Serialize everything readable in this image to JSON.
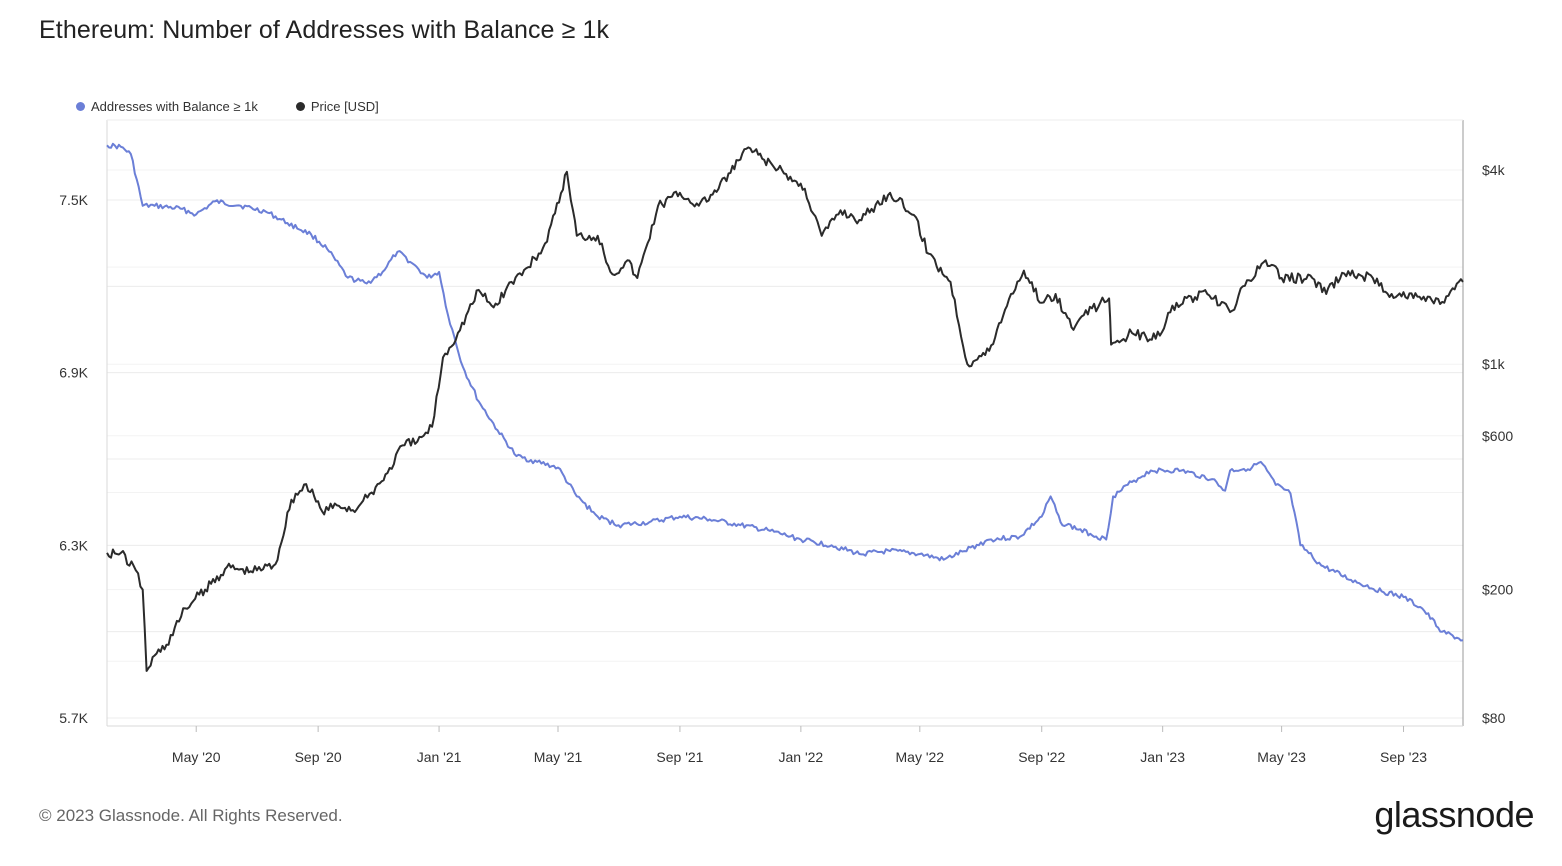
{
  "header": {
    "title": "Ethereum: Number of Addresses with Balance ≥ 1k"
  },
  "legend": [
    {
      "label": "Addresses with Balance ≥ 1k",
      "color": "#6b7fd7"
    },
    {
      "label": "Price [USD]",
      "color": "#2b2b2b"
    }
  ],
  "footer": {
    "copyright": "© 2023 Glassnode. All Rights Reserved.",
    "brand": "glassnode"
  },
  "chart_data": {
    "type": "line",
    "title": "Ethereum: Number of Addresses with Balance ≥ 1k",
    "x_ticks": [
      "May '20",
      "Sep '20",
      "Jan '21",
      "May '21",
      "Sep '21",
      "Jan '22",
      "May '22",
      "Sep '22",
      "Jan '23",
      "May '23",
      "Sep '23"
    ],
    "y_left_ticks": [
      "7.5K",
      "6.9K",
      "6.3K",
      "5.7K"
    ],
    "y_right_ticks": [
      "$4k",
      "$1k",
      "$600",
      "$200",
      "$80"
    ],
    "y_left_range": [
      5700,
      7800
    ],
    "y_right_scale": "log",
    "y_right_range": [
      80,
      5000
    ],
    "x_range": [
      "2020-02-01",
      "2023-10-31"
    ],
    "grid": true,
    "legend_position": "top-left",
    "series": [
      {
        "name": "Addresses with Balance ≥ 1k",
        "axis": "left",
        "color": "#6b7fd7",
        "points": [
          [
            "2020-02-01",
            7690
          ],
          [
            "2020-02-15",
            7685
          ],
          [
            "2020-02-25",
            7660
          ],
          [
            "2020-03-08",
            7480
          ],
          [
            "2020-03-20",
            7480
          ],
          [
            "2020-04-15",
            7470
          ],
          [
            "2020-05-01",
            7450
          ],
          [
            "2020-05-20",
            7495
          ],
          [
            "2020-06-15",
            7480
          ],
          [
            "2020-07-10",
            7460
          ],
          [
            "2020-08-01",
            7420
          ],
          [
            "2020-08-25",
            7380
          ],
          [
            "2020-09-10",
            7330
          ],
          [
            "2020-10-01",
            7230
          ],
          [
            "2020-10-20",
            7210
          ],
          [
            "2020-11-05",
            7250
          ],
          [
            "2020-11-20",
            7320
          ],
          [
            "2020-12-05",
            7280
          ],
          [
            "2020-12-20",
            7230
          ],
          [
            "2021-01-01",
            7250
          ],
          [
            "2021-01-10",
            7100
          ],
          [
            "2021-01-25",
            6920
          ],
          [
            "2021-02-10",
            6800
          ],
          [
            "2021-03-01",
            6700
          ],
          [
            "2021-03-20",
            6610
          ],
          [
            "2021-04-10",
            6590
          ],
          [
            "2021-05-01",
            6570
          ],
          [
            "2021-05-20",
            6470
          ],
          [
            "2021-06-10",
            6400
          ],
          [
            "2021-07-01",
            6370
          ],
          [
            "2021-08-01",
            6380
          ],
          [
            "2021-09-01",
            6400
          ],
          [
            "2021-10-01",
            6390
          ],
          [
            "2021-11-01",
            6370
          ],
          [
            "2021-12-01",
            6350
          ],
          [
            "2022-01-01",
            6320
          ],
          [
            "2022-02-01",
            6300
          ],
          [
            "2022-03-01",
            6270
          ],
          [
            "2022-04-01",
            6280
          ],
          [
            "2022-05-01",
            6270
          ],
          [
            "2022-05-25",
            6250
          ],
          [
            "2022-06-15",
            6280
          ],
          [
            "2022-07-10",
            6320
          ],
          [
            "2022-08-10",
            6330
          ],
          [
            "2022-09-01",
            6400
          ],
          [
            "2022-09-10",
            6470
          ],
          [
            "2022-09-20",
            6380
          ],
          [
            "2022-10-20",
            6340
          ],
          [
            "2022-11-05",
            6320
          ],
          [
            "2022-11-12",
            6470
          ],
          [
            "2022-12-01",
            6520
          ],
          [
            "2022-12-20",
            6560
          ],
          [
            "2023-01-20",
            6560
          ],
          [
            "2023-02-20",
            6530
          ],
          [
            "2023-03-05",
            6490
          ],
          [
            "2023-03-10",
            6560
          ],
          [
            "2023-04-01",
            6570
          ],
          [
            "2023-04-10",
            6590
          ],
          [
            "2023-04-25",
            6510
          ],
          [
            "2023-05-10",
            6480
          ],
          [
            "2023-05-20",
            6300
          ],
          [
            "2023-06-10",
            6230
          ],
          [
            "2023-07-10",
            6180
          ],
          [
            "2023-08-10",
            6140
          ],
          [
            "2023-09-01",
            6120
          ],
          [
            "2023-09-20",
            6080
          ],
          [
            "2023-10-10",
            6000
          ],
          [
            "2023-10-31",
            5970
          ]
        ]
      },
      {
        "name": "Price [USD]",
        "axis": "right",
        "color": "#2b2b2b",
        "points": [
          [
            "2020-02-01",
            260
          ],
          [
            "2020-02-15",
            260
          ],
          [
            "2020-03-01",
            230
          ],
          [
            "2020-03-08",
            200
          ],
          [
            "2020-03-12",
            112
          ],
          [
            "2020-03-20",
            125
          ],
          [
            "2020-04-01",
            135
          ],
          [
            "2020-04-20",
            175
          ],
          [
            "2020-05-10",
            200
          ],
          [
            "2020-06-01",
            235
          ],
          [
            "2020-06-25",
            228
          ],
          [
            "2020-07-20",
            240
          ],
          [
            "2020-08-05",
            380
          ],
          [
            "2020-08-20",
            425
          ],
          [
            "2020-09-05",
            350
          ],
          [
            "2020-09-20",
            365
          ],
          [
            "2020-10-10",
            355
          ],
          [
            "2020-10-25",
            400
          ],
          [
            "2020-11-10",
            460
          ],
          [
            "2020-11-25",
            560
          ],
          [
            "2020-12-10",
            575
          ],
          [
            "2020-12-25",
            640
          ],
          [
            "2021-01-05",
            1050
          ],
          [
            "2021-01-20",
            1250
          ],
          [
            "2021-02-10",
            1700
          ],
          [
            "2021-02-25",
            1500
          ],
          [
            "2021-03-15",
            1800
          ],
          [
            "2021-04-01",
            2000
          ],
          [
            "2021-04-20",
            2400
          ],
          [
            "2021-05-10",
            3950
          ],
          [
            "2021-05-20",
            2500
          ],
          [
            "2021-06-10",
            2500
          ],
          [
            "2021-06-25",
            1900
          ],
          [
            "2021-07-10",
            2100
          ],
          [
            "2021-07-20",
            1850
          ],
          [
            "2021-08-10",
            3100
          ],
          [
            "2021-09-01",
            3400
          ],
          [
            "2021-09-20",
            3100
          ],
          [
            "2021-10-10",
            3500
          ],
          [
            "2021-11-09",
            4700
          ],
          [
            "2021-11-25",
            4300
          ],
          [
            "2021-12-15",
            3900
          ],
          [
            "2022-01-05",
            3500
          ],
          [
            "2022-01-22",
            2500
          ],
          [
            "2022-02-10",
            3000
          ],
          [
            "2022-03-01",
            2800
          ],
          [
            "2022-04-01",
            3400
          ],
          [
            "2022-04-25",
            2900
          ],
          [
            "2022-05-10",
            2200
          ],
          [
            "2022-06-01",
            1800
          ],
          [
            "2022-06-18",
            1000
          ],
          [
            "2022-07-10",
            1100
          ],
          [
            "2022-08-01",
            1650
          ],
          [
            "2022-08-14",
            1950
          ],
          [
            "2022-09-01",
            1550
          ],
          [
            "2022-09-15",
            1650
          ],
          [
            "2022-10-01",
            1300
          ],
          [
            "2022-10-30",
            1550
          ],
          [
            "2022-11-08",
            1600
          ],
          [
            "2022-11-10",
            1150
          ],
          [
            "2022-12-01",
            1250
          ],
          [
            "2022-12-25",
            1200
          ],
          [
            "2023-01-15",
            1550
          ],
          [
            "2023-02-15",
            1650
          ],
          [
            "2023-03-10",
            1450
          ],
          [
            "2023-03-25",
            1750
          ],
          [
            "2023-04-15",
            2100
          ],
          [
            "2023-05-01",
            1850
          ],
          [
            "2023-06-01",
            1850
          ],
          [
            "2023-06-15",
            1650
          ],
          [
            "2023-07-01",
            1920
          ],
          [
            "2023-08-01",
            1850
          ],
          [
            "2023-08-20",
            1650
          ],
          [
            "2023-09-15",
            1620
          ],
          [
            "2023-10-10",
            1560
          ],
          [
            "2023-10-31",
            1800
          ]
        ]
      }
    ]
  }
}
